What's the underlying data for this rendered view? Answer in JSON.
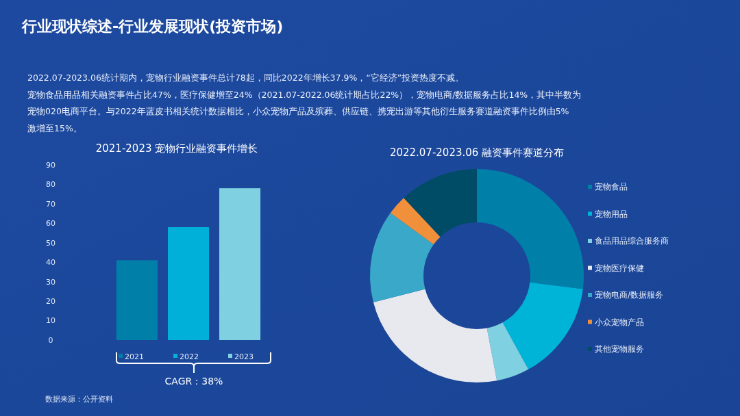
{
  "chart_data": [
    {
      "type": "other",
      "title": "行业现状综述-行业发展现状(投资市场)",
      "annotations": [
        "2022.07-2023.06统计期内，宠物行业融资事件总计78起，同比2022年增长37.9%，“它经济”投资热度不减。",
        "宠物食品用品相关融资事件占比47%，医疗保健增至24%（2021.07-2022.06统计期占比22%），宠物电商/数据服务占比14%，其中半数为",
        "宠物020电商平台。与2022年蓝皮书相关统计数据相比，小众宠物产品及殡葬、供应链、携宠出游等其他衍生服务赛道融资事件比例由5%",
        "激增至15%。"
      ]
    },
    {
      "type": "bar",
      "title": "2021-2023 宠物行业融资事件增长",
      "categories": [
        null
      ],
      "series": [
        {
          "name": "2021",
          "color": "#0080a8",
          "values": [
            41
          ]
        },
        {
          "name": "2022",
          "color": "#00b0d8",
          "values": [
            58
          ]
        },
        {
          "name": "2023",
          "color": "#7fd0e0",
          "values": [
            78
          ]
        }
      ],
      "ylim": [
        0,
        90
      ],
      "yticks": [
        0,
        10,
        20,
        30,
        40,
        50,
        60,
        70,
        80,
        90
      ],
      "legend": "bottom",
      "annotations": [
        "CAGR：38%",
        "数据来源：公开资料"
      ]
    },
    {
      "type": "donut",
      "title": "2022.07-2023.06 融资事件赛道分布",
      "legend": "right",
      "categories": [
        "宠物食品",
        "宠物用品",
        "食品用品综合服务商",
        "宠物医疗保健",
        "宠物电商/数据服务",
        "小众宠物产品",
        "其他宠物服务"
      ],
      "values": [
        27,
        15,
        5,
        24,
        14,
        3,
        12
      ],
      "colors": [
        "#0080a8",
        "#00b4d8",
        "#7fd0e0",
        "#e8e9ee",
        "#3aa8c8",
        "#f0903a",
        "#004c66"
      ]
    }
  ]
}
